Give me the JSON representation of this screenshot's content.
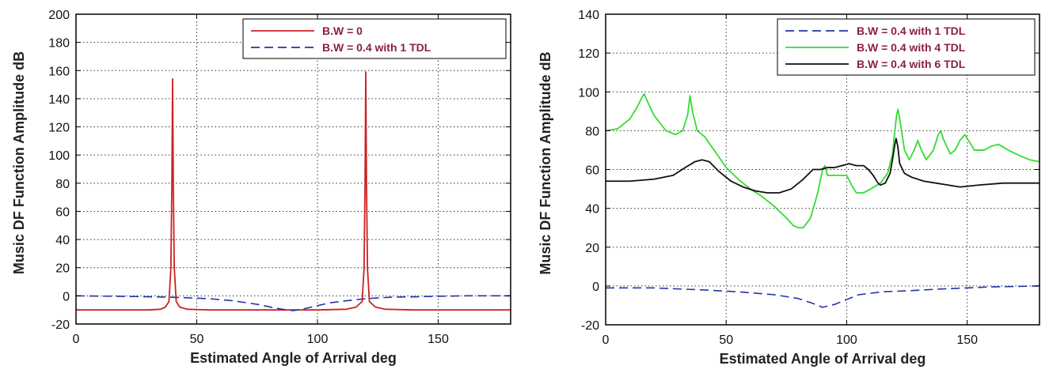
{
  "chart_data": [
    {
      "type": "line",
      "xlabel": "Estimated Angle of Arrival deg",
      "ylabel": "Music DF Function Amplitude dB",
      "xlim": [
        0,
        180
      ],
      "ylim": [
        -20,
        200
      ],
      "xticks": [
        0,
        50,
        100,
        150
      ],
      "yticks": [
        -20,
        0,
        20,
        40,
        60,
        80,
        100,
        120,
        140,
        160,
        180,
        200
      ],
      "grid": true,
      "legend_position": "top-right",
      "series": [
        {
          "name": "B.W = 0",
          "color": "#cc2222",
          "style": "solid",
          "points": [
            [
              0,
              -10
            ],
            [
              30,
              -10
            ],
            [
              35,
              -9.5
            ],
            [
              37,
              -8
            ],
            [
              38.5,
              -4
            ],
            [
              39.3,
              20
            ],
            [
              39.7,
              80
            ],
            [
              40,
              154
            ],
            [
              40.3,
              80
            ],
            [
              40.7,
              20
            ],
            [
              41.5,
              -4
            ],
            [
              43,
              -8
            ],
            [
              46,
              -9.5
            ],
            [
              55,
              -10
            ],
            [
              100,
              -10
            ],
            [
              112,
              -9.5
            ],
            [
              116,
              -8
            ],
            [
              118.5,
              -4
            ],
            [
              119.3,
              20
            ],
            [
              119.7,
              80
            ],
            [
              120,
              159
            ],
            [
              120.3,
              80
            ],
            [
              120.7,
              20
            ],
            [
              121.5,
              -4
            ],
            [
              124,
              -8
            ],
            [
              128,
              -9.5
            ],
            [
              140,
              -10
            ],
            [
              180,
              -10
            ]
          ]
        },
        {
          "name": "B.W = 0.4 with 1 TDL",
          "color": "#2233aa",
          "style": "dashed",
          "points": [
            [
              0,
              0
            ],
            [
              25,
              -0.5
            ],
            [
              40,
              -1
            ],
            [
              55,
              -2
            ],
            [
              65,
              -3.5
            ],
            [
              75,
              -6
            ],
            [
              82,
              -8.5
            ],
            [
              87,
              -10
            ],
            [
              90,
              -10.5
            ],
            [
              95,
              -9
            ],
            [
              100,
              -7
            ],
            [
              105,
              -5
            ],
            [
              112,
              -3.5
            ],
            [
              120,
              -2
            ],
            [
              130,
              -1
            ],
            [
              145,
              -0.5
            ],
            [
              160,
              0
            ],
            [
              180,
              0
            ]
          ]
        }
      ]
    },
    {
      "type": "line",
      "xlabel": "Estimated Angle of Arrival deg",
      "ylabel": "Music DF Function Amplitude dB",
      "xlim": [
        0,
        180
      ],
      "ylim": [
        -20,
        140
      ],
      "xticks": [
        0,
        50,
        100,
        150
      ],
      "yticks": [
        -20,
        0,
        20,
        40,
        60,
        80,
        100,
        120,
        140
      ],
      "grid": true,
      "legend_position": "top-right",
      "series": [
        {
          "name": "B.W = 0.4 with 1 TDL",
          "color": "#2233aa",
          "style": "dashed",
          "points": [
            [
              0,
              -1
            ],
            [
              20,
              -1
            ],
            [
              40,
              -2
            ],
            [
              55,
              -3
            ],
            [
              70,
              -4.5
            ],
            [
              80,
              -6.5
            ],
            [
              86,
              -9
            ],
            [
              90,
              -11
            ],
            [
              95,
              -9.5
            ],
            [
              100,
              -7
            ],
            [
              105,
              -4.5
            ],
            [
              115,
              -3
            ],
            [
              125,
              -2.5
            ],
            [
              140,
              -1.5
            ],
            [
              160,
              -0.5
            ],
            [
              180,
              0
            ]
          ]
        },
        {
          "name": "B.W = 0.4 with 4 TDL",
          "color": "#33dd33",
          "style": "solid",
          "points": [
            [
              0,
              80
            ],
            [
              5,
              81
            ],
            [
              10,
              86
            ],
            [
              13,
              92
            ],
            [
              15,
              97
            ],
            [
              16,
              99
            ],
            [
              17,
              96
            ],
            [
              20,
              88
            ],
            [
              25,
              80
            ],
            [
              29,
              78
            ],
            [
              32,
              80
            ],
            [
              34,
              88
            ],
            [
              35,
              98
            ],
            [
              36,
              90
            ],
            [
              38,
              80
            ],
            [
              41,
              77
            ],
            [
              45,
              70
            ],
            [
              50,
              61
            ],
            [
              55,
              55
            ],
            [
              60,
              50
            ],
            [
              65,
              46
            ],
            [
              70,
              41
            ],
            [
              75,
              35
            ],
            [
              78,
              31
            ],
            [
              80,
              30
            ],
            [
              82,
              30
            ],
            [
              85,
              35
            ],
            [
              88,
              48
            ],
            [
              90,
              60
            ],
            [
              91,
              62
            ],
            [
              92,
              57
            ],
            [
              95,
              57
            ],
            [
              98,
              57
            ],
            [
              100,
              57
            ],
            [
              102,
              52
            ],
            [
              104,
              48
            ],
            [
              107,
              48
            ],
            [
              110,
              50
            ],
            [
              114,
              53
            ],
            [
              117,
              58
            ],
            [
              119,
              68
            ],
            [
              120,
              80
            ],
            [
              120.7,
              88
            ],
            [
              121.3,
              91
            ],
            [
              122,
              86
            ],
            [
              124,
              70
            ],
            [
              126,
              65
            ],
            [
              128,
              70
            ],
            [
              129.5,
              75
            ],
            [
              131,
              70
            ],
            [
              133,
              65
            ],
            [
              136,
              70
            ],
            [
              138,
              78
            ],
            [
              139,
              80
            ],
            [
              140,
              76
            ],
            [
              143,
              68
            ],
            [
              145,
              70
            ],
            [
              147,
              75
            ],
            [
              149,
              78
            ],
            [
              150,
              76
            ],
            [
              153,
              70
            ],
            [
              157,
              70
            ],
            [
              160,
              72
            ],
            [
              163,
              73
            ],
            [
              167,
              70
            ],
            [
              172,
              67
            ],
            [
              176,
              65
            ],
            [
              180,
              64
            ]
          ]
        },
        {
          "name": "B.W = 0.4 with 6 TDL",
          "color": "#111111",
          "style": "solid",
          "points": [
            [
              0,
              54
            ],
            [
              10,
              54
            ],
            [
              20,
              55
            ],
            [
              28,
              57
            ],
            [
              33,
              61
            ],
            [
              37,
              64
            ],
            [
              40,
              65
            ],
            [
              43,
              64
            ],
            [
              47,
              59
            ],
            [
              52,
              54
            ],
            [
              57,
              51
            ],
            [
              62,
              49
            ],
            [
              67,
              48
            ],
            [
              72,
              48
            ],
            [
              77,
              50
            ],
            [
              82,
              55
            ],
            [
              86,
              60
            ],
            [
              89,
              60
            ],
            [
              92,
              61
            ],
            [
              95,
              61
            ],
            [
              98,
              62
            ],
            [
              101,
              63
            ],
            [
              104,
              62
            ],
            [
              107,
              62
            ],
            [
              109,
              60
            ],
            [
              111,
              57
            ],
            [
              113,
              53
            ],
            [
              114,
              52
            ],
            [
              116,
              53
            ],
            [
              118,
              58
            ],
            [
              119,
              65
            ],
            [
              120,
              73
            ],
            [
              120.5,
              76
            ],
            [
              121.2,
              72
            ],
            [
              122,
              63
            ],
            [
              124,
              58
            ],
            [
              127,
              56
            ],
            [
              132,
              54
            ],
            [
              137,
              53
            ],
            [
              142,
              52
            ],
            [
              147,
              51
            ],
            [
              155,
              52
            ],
            [
              165,
              53
            ],
            [
              180,
              53
            ]
          ]
        }
      ]
    }
  ]
}
